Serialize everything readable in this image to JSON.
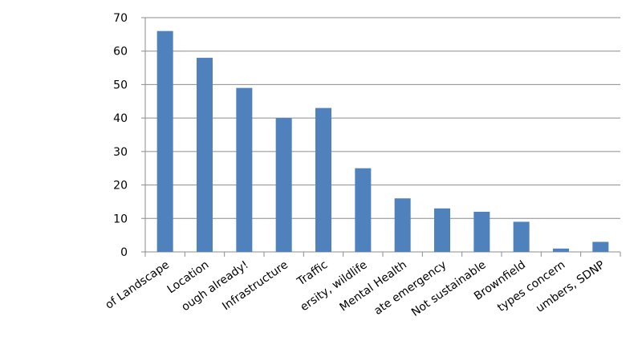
{
  "chart_data": {
    "type": "bar",
    "categories": [
      "of Landscape",
      "Location",
      "ough already!",
      "Infrastructure",
      "Traffic",
      "ersity, wildlife",
      "Mental Health",
      "ate emergency",
      "Not sustainable",
      "Brownfield",
      "types concern",
      "umbers, SDNP"
    ],
    "values": [
      66,
      58,
      49,
      40,
      43,
      25,
      16,
      13,
      12,
      9,
      1,
      3
    ],
    "color": "#4f81bd",
    "ylim": [
      0,
      70
    ],
    "yticks": [
      0,
      10,
      20,
      30,
      40,
      50,
      60,
      70
    ],
    "grid": true
  }
}
